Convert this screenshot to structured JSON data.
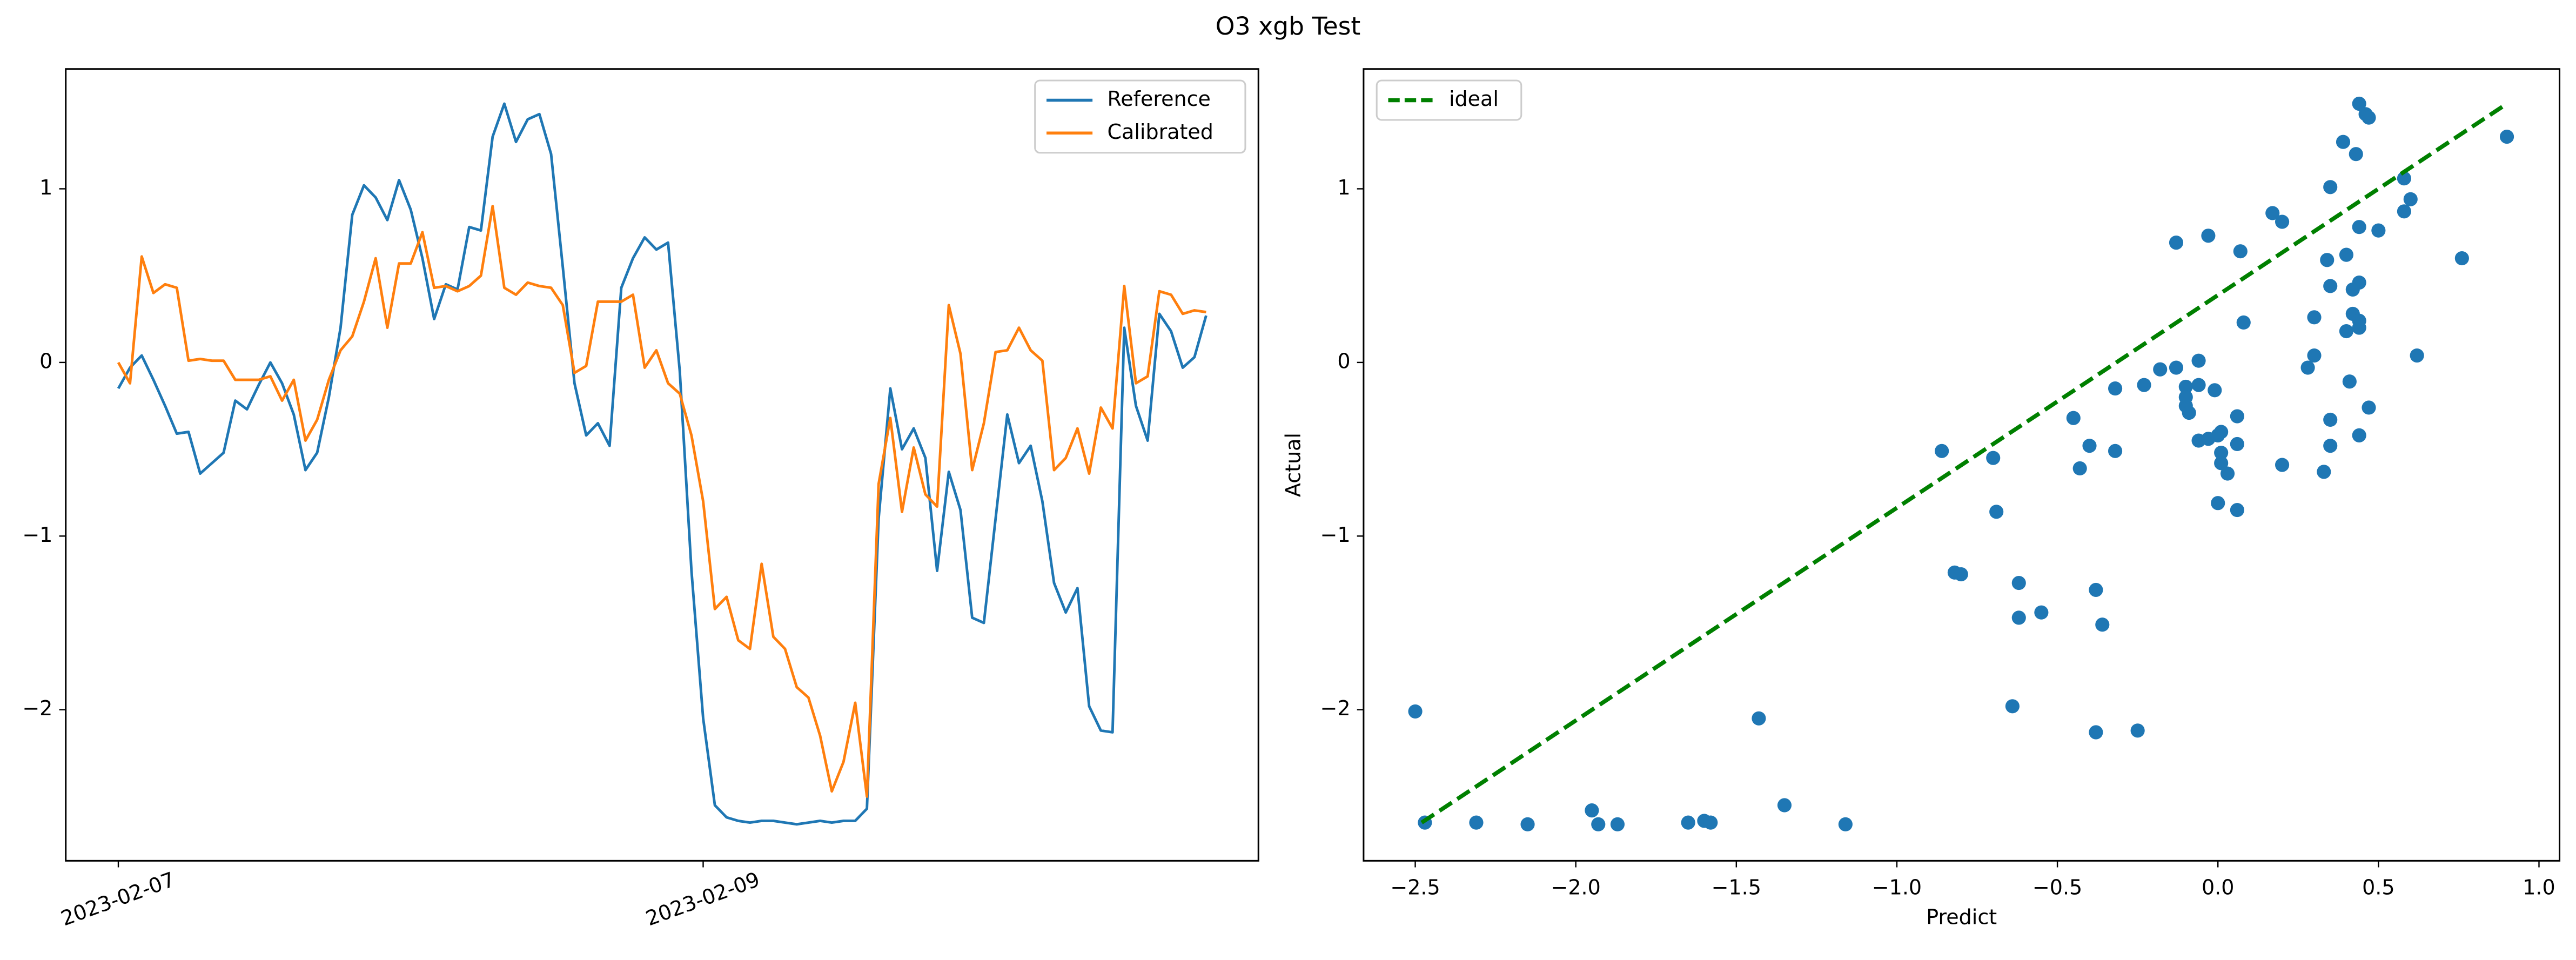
{
  "title": "O3 xgb Test",
  "chart_data": [
    {
      "type": "line",
      "categories": [
        "2023-02-07",
        null,
        null,
        null,
        null,
        null,
        null,
        null,
        null,
        null,
        null,
        null,
        null,
        null,
        null,
        null,
        null,
        null,
        null,
        null,
        null,
        null,
        null,
        null,
        null,
        null,
        null,
        null,
        null,
        null,
        null,
        null,
        null,
        null,
        null,
        null,
        null,
        null,
        null,
        null,
        null,
        null,
        null,
        null,
        null,
        null,
        null,
        null,
        null,
        null,
        "2023-02-09",
        null,
        null,
        null,
        null,
        null,
        null,
        null,
        null,
        null,
        null,
        null,
        null,
        null,
        null,
        null,
        null,
        null,
        null,
        null,
        null,
        null,
        null,
        null,
        null,
        null,
        null,
        null,
        null,
        null,
        null,
        null,
        null,
        null,
        null,
        null,
        null,
        null,
        null,
        null,
        null,
        null,
        null,
        null
      ],
      "series": [
        {
          "name": "Reference",
          "color": "#1f77b4",
          "values": [
            -0.15,
            -0.03,
            0.04,
            -0.1,
            -0.25,
            -0.41,
            -0.4,
            -0.64,
            -0.58,
            -0.52,
            -0.22,
            -0.27,
            -0.13,
            0.0,
            -0.12,
            -0.3,
            -0.62,
            -0.52,
            -0.2,
            0.2,
            0.85,
            1.02,
            0.95,
            0.82,
            1.05,
            0.88,
            0.6,
            0.25,
            0.45,
            0.42,
            0.78,
            0.76,
            1.3,
            1.49,
            1.27,
            1.4,
            1.43,
            1.2,
            0.55,
            -0.12,
            -0.42,
            -0.35,
            -0.48,
            0.43,
            0.6,
            0.72,
            0.65,
            0.69,
            -0.05,
            -1.2,
            -2.05,
            -2.55,
            -2.62,
            -2.64,
            -2.65,
            -2.64,
            -2.64,
            -2.65,
            -2.66,
            -2.65,
            -2.64,
            -2.65,
            -2.64,
            -2.64,
            -2.57,
            -0.9,
            -0.15,
            -0.5,
            -0.38,
            -0.55,
            -1.2,
            -0.63,
            -0.85,
            -1.47,
            -1.5,
            -0.9,
            -0.3,
            -0.58,
            -0.48,
            -0.8,
            -1.27,
            -1.44,
            -1.3,
            -1.98,
            -2.12,
            -2.13,
            0.2,
            -0.25,
            -0.45,
            0.28,
            0.18,
            -0.03,
            0.03,
            0.27
          ]
        },
        {
          "name": "Calibrated",
          "color": "#ff7f0e",
          "values": [
            0.0,
            -0.12,
            0.61,
            0.4,
            0.45,
            0.43,
            0.01,
            0.02,
            0.01,
            0.01,
            -0.1,
            -0.1,
            -0.1,
            -0.08,
            -0.22,
            -0.1,
            -0.45,
            -0.33,
            -0.1,
            0.07,
            0.15,
            0.35,
            0.6,
            0.2,
            0.57,
            0.57,
            0.75,
            0.43,
            0.44,
            0.41,
            0.44,
            0.5,
            0.9,
            0.43,
            0.39,
            0.46,
            0.44,
            0.43,
            0.33,
            -0.06,
            -0.02,
            0.35,
            0.35,
            0.35,
            0.39,
            -0.03,
            0.07,
            -0.12,
            -0.18,
            -0.42,
            -0.8,
            -1.42,
            -1.35,
            -1.6,
            -1.65,
            -1.16,
            -1.58,
            -1.65,
            -1.87,
            -1.93,
            -2.15,
            -2.47,
            -2.3,
            -1.96,
            -2.5,
            -0.7,
            -0.32,
            -0.86,
            -0.49,
            -0.76,
            -0.83,
            0.33,
            0.05,
            -0.62,
            -0.35,
            0.06,
            0.07,
            0.2,
            0.07,
            0.01,
            -0.62,
            -0.55,
            -0.38,
            -0.64,
            -0.26,
            -0.38,
            0.44,
            -0.12,
            -0.08,
            0.41,
            0.39,
            0.28,
            0.3,
            0.29
          ]
        }
      ],
      "ylim": [
        -2.87,
        1.69
      ],
      "yticks": [
        {
          "value": -2,
          "label": "−2"
        },
        {
          "value": -1,
          "label": "−1"
        },
        0,
        1
      ],
      "legend": "upper right"
    },
    {
      "type": "scatter",
      "x_label": "Predict",
      "y_label": "Actual",
      "points": {
        "color": "#1f77b4",
        "x": [
          -2.5,
          -2.47,
          -2.31,
          -2.15,
          -1.95,
          -1.93,
          -1.87,
          -1.65,
          -1.6,
          -1.58,
          -1.43,
          -1.35,
          -1.16,
          -0.86,
          -0.82,
          -0.8,
          -0.7,
          -0.69,
          -0.64,
          -0.62,
          -0.62,
          -0.55,
          -0.45,
          -0.43,
          -0.4,
          -0.38,
          -0.38,
          -0.36,
          -0.32,
          -0.32,
          -0.25,
          -0.23,
          -0.18,
          -0.13,
          -0.13,
          -0.1,
          -0.1,
          -0.1,
          -0.09,
          -0.06,
          -0.06,
          -0.06,
          -0.03,
          -0.03,
          -0.01,
          0.0,
          0.0,
          0.01,
          0.01,
          0.01,
          0.03,
          0.06,
          0.06,
          0.06,
          0.07,
          0.08,
          0.17,
          0.2,
          0.2,
          0.28,
          0.3,
          0.3,
          0.33,
          0.34,
          0.35,
          0.35,
          0.35,
          0.35,
          0.39,
          0.4,
          0.4,
          0.41,
          0.42,
          0.42,
          0.43,
          0.44,
          0.44,
          0.44,
          0.44,
          0.44,
          0.44,
          0.46,
          0.47,
          0.47,
          0.5,
          0.58,
          0.58,
          0.6,
          0.62,
          0.76,
          0.9
        ],
        "y": [
          -2.01,
          -2.65,
          -2.65,
          -2.66,
          -2.58,
          -2.66,
          -2.66,
          -2.65,
          -2.64,
          -2.65,
          -2.05,
          -2.55,
          -2.66,
          -0.51,
          -1.21,
          -1.22,
          -0.55,
          -0.86,
          -1.98,
          -1.27,
          -1.47,
          -1.44,
          -0.32,
          -0.61,
          -0.48,
          -1.31,
          -2.13,
          -1.51,
          -0.15,
          -0.51,
          -2.12,
          -0.13,
          -0.04,
          0.69,
          -0.03,
          -0.14,
          -0.2,
          -0.25,
          -0.29,
          0.01,
          -0.13,
          -0.45,
          0.73,
          -0.44,
          -0.16,
          -0.42,
          -0.81,
          -0.4,
          -0.52,
          -0.58,
          -0.64,
          -0.31,
          -0.47,
          -0.85,
          0.64,
          0.23,
          0.86,
          0.81,
          -0.59,
          -0.03,
          0.04,
          0.26,
          -0.63,
          0.59,
          1.01,
          0.44,
          -0.33,
          -0.48,
          1.27,
          0.62,
          0.18,
          -0.11,
          0.28,
          0.42,
          1.2,
          1.49,
          0.78,
          0.46,
          0.24,
          0.2,
          -0.42,
          1.43,
          1.41,
          -0.26,
          0.76,
          1.06,
          0.87,
          0.94,
          0.04,
          0.6,
          1.3
        ]
      },
      "lines": [
        {
          "name": "ideal",
          "color": "#008000",
          "dashed": true,
          "x": [
            -2.48,
            0.9
          ],
          "y": [
            -2.65,
            1.49
          ]
        }
      ],
      "xlim": [
        -2.661,
        1.064
      ],
      "xticks": [
        {
          "value": -2.5,
          "label": "−2.5"
        },
        {
          "value": -2.0,
          "label": "−2.0"
        },
        {
          "value": -1.5,
          "label": "−1.5"
        },
        {
          "value": -1.0,
          "label": "−1.0"
        },
        {
          "value": -0.5,
          "label": "−0.5"
        },
        {
          "value": 0,
          "label": "0.0"
        },
        {
          "value": 0.5,
          "label": "0.5"
        },
        {
          "value": 1.0,
          "label": "1.0"
        }
      ],
      "ylim": [
        -2.87,
        1.69
      ],
      "yticks": [
        {
          "value": -2,
          "label": "−2"
        },
        {
          "value": -1,
          "label": "−1"
        },
        0,
        1
      ],
      "legend": "upper left"
    }
  ]
}
